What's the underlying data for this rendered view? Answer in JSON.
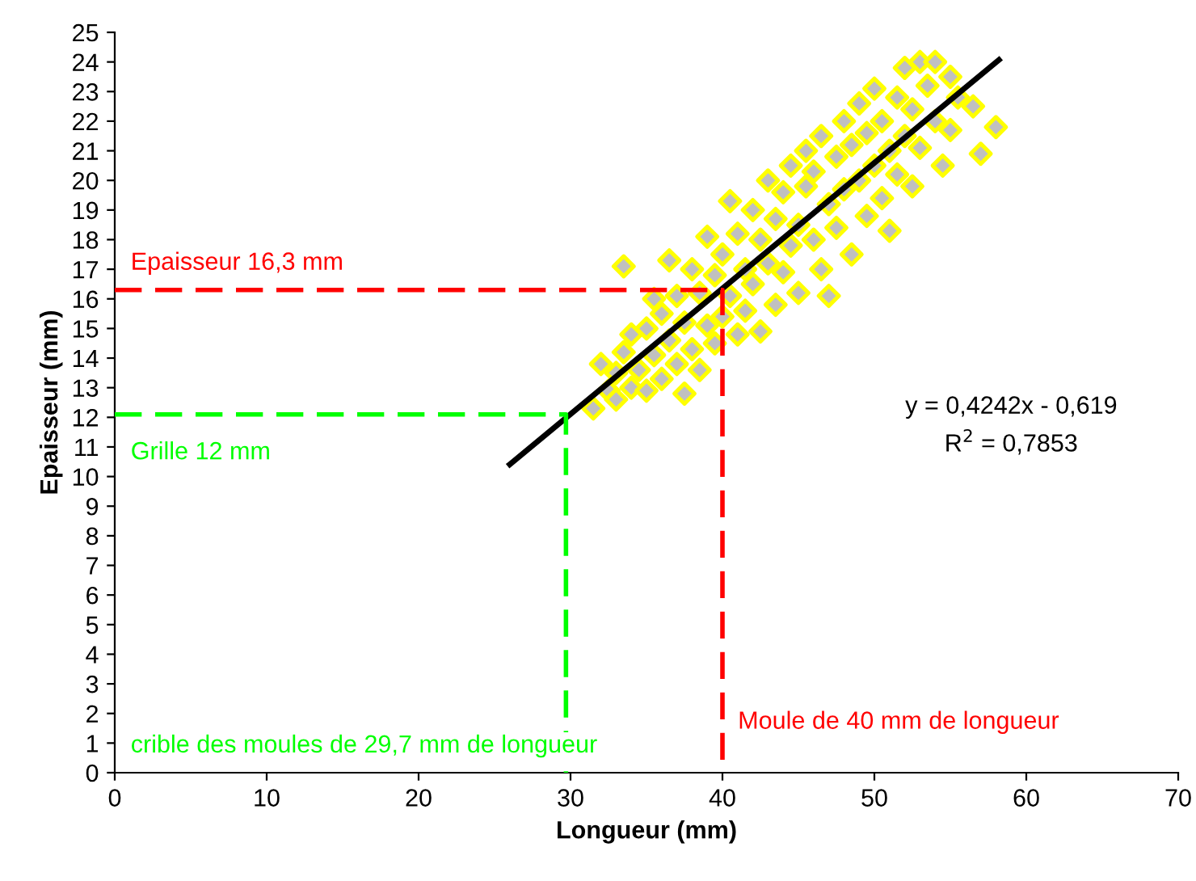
{
  "chart_data": {
    "type": "scatter",
    "xlabel": "Longueur (mm)",
    "ylabel": "Epaisseur (mm)",
    "xlim": [
      0,
      70
    ],
    "xticks": [
      0,
      10,
      20,
      30,
      40,
      50,
      60,
      70
    ],
    "ylim": [
      0,
      25
    ],
    "yticks": [
      0,
      1,
      2,
      3,
      4,
      5,
      6,
      7,
      8,
      9,
      10,
      11,
      12,
      13,
      14,
      15,
      16,
      17,
      18,
      19,
      20,
      21,
      22,
      23,
      24,
      25
    ],
    "grid": false,
    "legend": false,
    "series": [
      {
        "color": "#c0c0c0",
        "marker": "diamond",
        "x": [
          31.5,
          32,
          32.5,
          33,
          33,
          33.5,
          33.5,
          34,
          34,
          34.5,
          35,
          35,
          35.5,
          35.5,
          36,
          36,
          36.5,
          36.5,
          37,
          37,
          37.5,
          37.5,
          38,
          38,
          38.5,
          38.5,
          39,
          39,
          39.5,
          39.5,
          40,
          40,
          40.5,
          40.5,
          41,
          41,
          41.5,
          41.5,
          42,
          42,
          42.5,
          42.5,
          43,
          43,
          43.5,
          43.5,
          44,
          44,
          44.5,
          44.5,
          45,
          45,
          45.5,
          45.5,
          46,
          46,
          46.5,
          46.5,
          47,
          47,
          47.5,
          47.5,
          48,
          48,
          48.5,
          48.5,
          49,
          49,
          49.5,
          49.5,
          50,
          50,
          50.5,
          50.5,
          51,
          51,
          51.5,
          51.5,
          52,
          52,
          52.5,
          52.5,
          53,
          53,
          53.5,
          54,
          54,
          54.5,
          55,
          55,
          55.5,
          56.5,
          57,
          58
        ],
        "values": [
          12.3,
          13.8,
          12.9,
          13.5,
          12.6,
          17.1,
          14.2,
          13.0,
          14.8,
          13.6,
          15.0,
          12.9,
          14.1,
          16.0,
          13.3,
          15.5,
          14.6,
          17.3,
          13.8,
          16.1,
          15.2,
          12.8,
          14.3,
          17.0,
          16.2,
          13.6,
          15.1,
          18.1,
          14.5,
          16.8,
          17.5,
          15.4,
          19.3,
          16.1,
          14.8,
          18.2,
          17.0,
          15.6,
          19.0,
          16.5,
          18.0,
          14.9,
          20.0,
          17.2,
          18.7,
          15.8,
          19.6,
          16.9,
          20.5,
          17.8,
          18.5,
          16.2,
          19.8,
          21.0,
          18.0,
          20.3,
          17.0,
          21.5,
          19.2,
          16.1,
          20.8,
          18.4,
          22.0,
          19.7,
          17.5,
          21.2,
          20.0,
          22.6,
          18.8,
          21.6,
          20.5,
          23.1,
          19.4,
          22.0,
          21.0,
          18.3,
          22.8,
          20.2,
          21.5,
          23.8,
          19.8,
          22.4,
          24.0,
          21.1,
          23.2,
          22.0,
          24.0,
          20.5,
          23.5,
          21.7,
          22.8,
          22.5,
          20.9,
          21.8
        ]
      },
      {
        "type": "line",
        "color": "#000000",
        "line_style": "solid",
        "x": [
          26,
          58.2
        ],
        "values": [
          10.41,
          24.07
        ]
      },
      {
        "type": "line",
        "color": "#ff0000",
        "line_style": "dashed",
        "x": [
          0,
          40,
          40
        ],
        "values": [
          16.3,
          16.3,
          0
        ]
      },
      {
        "type": "line",
        "color": "#00ff00",
        "line_style": "dashed",
        "x": [
          0,
          29.7,
          29.7
        ],
        "values": [
          12.1,
          12.1,
          0
        ]
      }
    ],
    "annotations": [
      "Epaisseur 16,3 mm",
      "Grille 12 mm",
      "crible des moules de 29,7 mm de longueur",
      "Moule de 40 mm de longueur",
      "y = 0,4242x - 0,619\nR$^{2}$ = 0,7853"
    ]
  }
}
